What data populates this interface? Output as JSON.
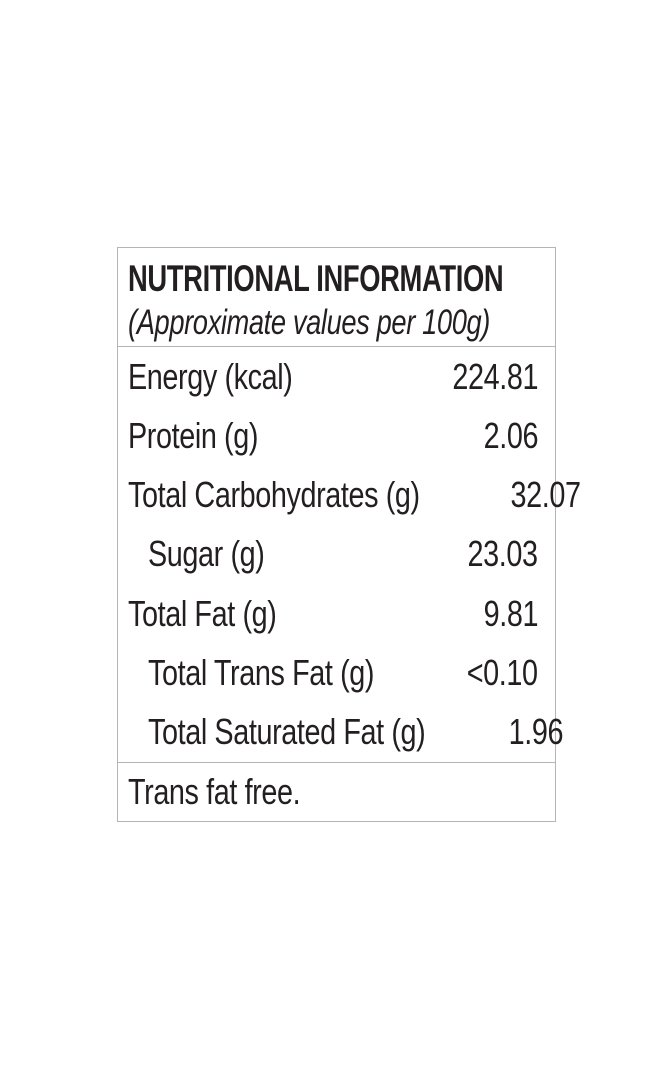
{
  "label": {
    "title": "NUTRITIONAL INFORMATION",
    "subtitle": "(Approximate values per 100g)",
    "rows": [
      {
        "name": "Energy (kcal)",
        "value": "224.81",
        "indent": false
      },
      {
        "name": "Protein (g)",
        "value": "2.06",
        "indent": false
      },
      {
        "name": "Total Carbohydrates (g)",
        "value": "32.07",
        "indent": false
      },
      {
        "name": "Sugar (g)",
        "value": "23.03",
        "indent": true
      },
      {
        "name": "Total Fat (g)",
        "value": "9.81",
        "indent": false
      },
      {
        "name": "Total Trans Fat (g)",
        "value": "<0.10",
        "indent": true
      },
      {
        "name": "Total Saturated Fat (g)",
        "value": "1.96",
        "indent": true
      }
    ],
    "footnote": "Trans fat free.",
    "colors": {
      "text": "#231f20",
      "border": "#b5b5b5",
      "background": "#ffffff"
    }
  }
}
